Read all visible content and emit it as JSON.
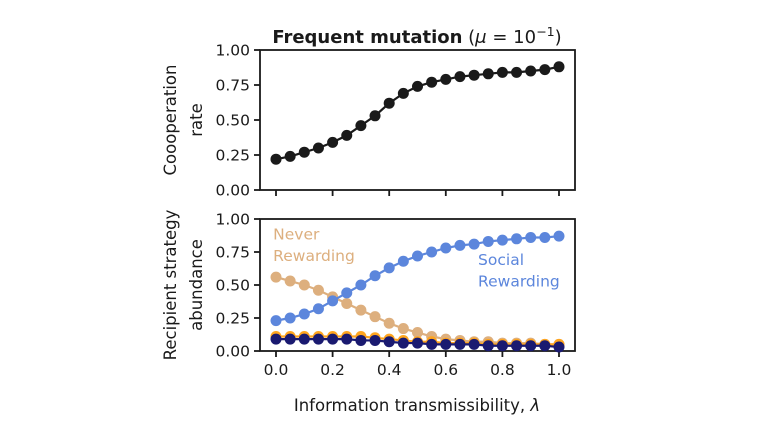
{
  "title": {
    "main": "Frequent mutation",
    "math": {
      "open": " (",
      "mu": "μ",
      "eq": " = 10",
      "sup": "−1",
      "close": ")"
    }
  },
  "xlabel": {
    "main": "Information transmissibility, ",
    "symbol": "λ"
  },
  "colors": {
    "black": "#1a1a1a",
    "never_rewarding_tan": "#DDAF7E",
    "social_rewarding_blue": "#5C86DC",
    "unlabeled_orange": "#FFA51E",
    "unlabeled_navy": "#1A1A70"
  },
  "chart_data": [
    {
      "type": "line",
      "panel": "top",
      "title": "Frequent mutation (μ = 10⁻¹)",
      "ylabel": "Coooperation rate",
      "ylabel_lines": [
        "Coooperation",
        "rate"
      ],
      "xlabel": "",
      "xlim": [
        -0.057,
        1.057
      ],
      "ylim": [
        0,
        1
      ],
      "grid": false,
      "legend": "none",
      "x": [
        0.0,
        0.05,
        0.1,
        0.15,
        0.2,
        0.25,
        0.3,
        0.35,
        0.4,
        0.45,
        0.5,
        0.55,
        0.6,
        0.65,
        0.7,
        0.75,
        0.8,
        0.85,
        0.9,
        0.95,
        1.0
      ],
      "series": [
        {
          "name": "cooperation-rate",
          "color": "#1a1a1a",
          "values": [
            0.22,
            0.24,
            0.27,
            0.3,
            0.34,
            0.39,
            0.46,
            0.53,
            0.62,
            0.69,
            0.74,
            0.77,
            0.79,
            0.81,
            0.82,
            0.83,
            0.84,
            0.84,
            0.85,
            0.86,
            0.88
          ]
        }
      ],
      "yticks": {
        "values": [
          0,
          0.25,
          0.5,
          0.75,
          1.0
        ],
        "labels": [
          "0.00",
          "0.25",
          "0.50",
          "0.75",
          "1.00"
        ]
      },
      "xticks": {
        "values": [
          0,
          0.2,
          0.4,
          0.6,
          0.8,
          1.0
        ],
        "labels": [
          "0.0",
          "0.2",
          "0.4",
          "0.6",
          "0.8",
          "1.0"
        ],
        "labels_visible": false
      },
      "annotations": []
    },
    {
      "type": "line",
      "panel": "bottom",
      "title": "",
      "ylabel": "Recipient strategy abundance",
      "ylabel_lines": [
        "Recipient strategy",
        "abundance"
      ],
      "xlabel": "Information transmissibility, λ",
      "xlim": [
        -0.057,
        1.057
      ],
      "ylim": [
        0,
        1
      ],
      "grid": false,
      "legend": "in-plot text annotations",
      "x": [
        0.0,
        0.05,
        0.1,
        0.15,
        0.2,
        0.25,
        0.3,
        0.35,
        0.4,
        0.45,
        0.5,
        0.55,
        0.6,
        0.65,
        0.7,
        0.75,
        0.8,
        0.85,
        0.9,
        0.95,
        1.0
      ],
      "series": [
        {
          "name": "never-rewarding",
          "color": "#DDAF7E",
          "values": [
            0.56,
            0.53,
            0.5,
            0.46,
            0.41,
            0.36,
            0.31,
            0.26,
            0.21,
            0.17,
            0.14,
            0.11,
            0.09,
            0.08,
            0.07,
            0.07,
            0.06,
            0.06,
            0.06,
            0.05,
            0.05
          ]
        },
        {
          "name": "social-rewarding",
          "color": "#5C86DC",
          "values": [
            0.23,
            0.25,
            0.28,
            0.32,
            0.38,
            0.44,
            0.5,
            0.57,
            0.63,
            0.68,
            0.72,
            0.75,
            0.78,
            0.8,
            0.81,
            0.83,
            0.84,
            0.85,
            0.86,
            0.86,
            0.87
          ]
        },
        {
          "name": "unlabeled-orange",
          "color": "#FFA51E",
          "values": [
            0.11,
            0.11,
            0.11,
            0.11,
            0.11,
            0.11,
            0.11,
            0.1,
            0.09,
            0.08,
            0.07,
            0.07,
            0.06,
            0.06,
            0.06,
            0.05,
            0.05,
            0.05,
            0.05,
            0.05,
            0.05
          ]
        },
        {
          "name": "unlabeled-navy",
          "color": "#1A1A70",
          "values": [
            0.09,
            0.09,
            0.09,
            0.09,
            0.09,
            0.09,
            0.08,
            0.08,
            0.07,
            0.06,
            0.06,
            0.05,
            0.05,
            0.05,
            0.05,
            0.04,
            0.04,
            0.04,
            0.04,
            0.04,
            0.03
          ]
        }
      ],
      "yticks": {
        "values": [
          0,
          0.25,
          0.5,
          0.75,
          1.0
        ],
        "labels": [
          "0.00",
          "0.25",
          "0.50",
          "0.75",
          "1.00"
        ]
      },
      "xticks": {
        "values": [
          0,
          0.2,
          0.4,
          0.6,
          0.8,
          1.0
        ],
        "labels": [
          "0.0",
          "0.2",
          "0.4",
          "0.6",
          "0.8",
          "1.0"
        ],
        "labels_visible": true
      },
      "annotations": [
        {
          "name": "never-rewarding-label",
          "text_lines": [
            "Never",
            "Rewarding"
          ],
          "color": "#DDAF7E",
          "x": -0.01,
          "y": 0.845
        },
        {
          "name": "social-rewarding-label",
          "text_lines": [
            "Social",
            "Rewarding"
          ],
          "color": "#5C86DC",
          "x": 0.714,
          "y": 0.65
        }
      ]
    }
  ]
}
